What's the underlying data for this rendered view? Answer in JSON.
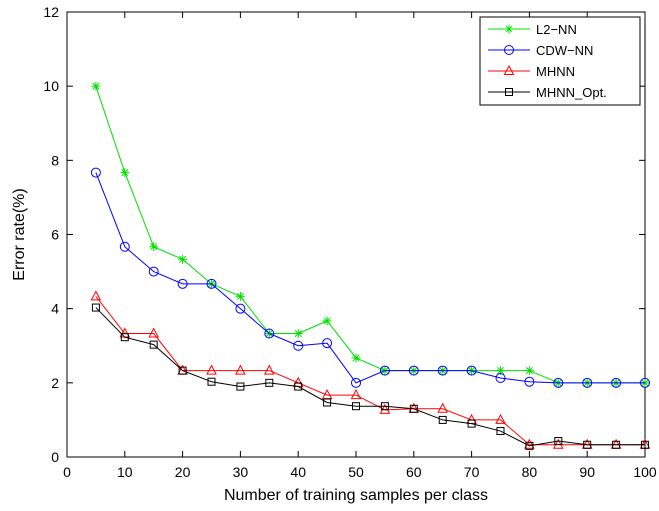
{
  "chart_data": {
    "type": "line",
    "title": "",
    "xlabel": "Number of training samples per class",
    "ylabel": "Error rate(%)",
    "xlim": [
      0,
      100
    ],
    "ylim": [
      0,
      12
    ],
    "xticks": [
      0,
      10,
      20,
      30,
      40,
      50,
      60,
      70,
      80,
      90,
      100
    ],
    "yticks": [
      0,
      2,
      4,
      6,
      8,
      10,
      12
    ],
    "grid": false,
    "legend_position": "top-right",
    "x": [
      5,
      10,
      15,
      20,
      25,
      30,
      35,
      40,
      45,
      50,
      55,
      60,
      65,
      70,
      75,
      80,
      85,
      90,
      95,
      100
    ],
    "series": [
      {
        "name": "L2−NN",
        "color": "#00e000",
        "marker": "asterisk",
        "values": [
          10.0,
          7.67,
          5.67,
          5.33,
          4.67,
          4.33,
          3.33,
          3.33,
          3.67,
          2.67,
          2.33,
          2.33,
          2.33,
          2.33,
          2.33,
          2.33,
          2.0,
          2.0,
          2.0,
          2.0
        ]
      },
      {
        "name": "CDW−NN",
        "color": "#0000ff",
        "marker": "circle",
        "values": [
          7.67,
          5.67,
          5.0,
          4.67,
          4.67,
          4.0,
          3.33,
          3.0,
          3.07,
          2.0,
          2.33,
          2.33,
          2.33,
          2.33,
          2.13,
          2.03,
          2.0,
          2.0,
          2.0,
          2.0
        ]
      },
      {
        "name": "MHNN",
        "color": "#ff0000",
        "marker": "triangle",
        "values": [
          4.33,
          3.33,
          3.33,
          2.33,
          2.33,
          2.33,
          2.33,
          2.0,
          1.67,
          1.67,
          1.27,
          1.3,
          1.3,
          1.0,
          1.0,
          0.33,
          0.33,
          0.33,
          0.33,
          0.33
        ]
      },
      {
        "name": "MHNN_Opt.",
        "color": "#000000",
        "marker": "square",
        "values": [
          4.03,
          3.23,
          3.03,
          2.33,
          2.03,
          1.9,
          2.0,
          1.9,
          1.47,
          1.37,
          1.37,
          1.3,
          1.0,
          0.9,
          0.7,
          0.3,
          0.43,
          0.33,
          0.33,
          0.33
        ]
      }
    ]
  }
}
